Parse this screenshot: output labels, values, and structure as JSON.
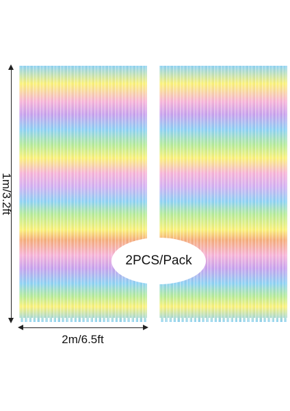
{
  "product": {
    "height_label": "1m/3.2ft",
    "width_label": "2m/6.5ft",
    "pack_label": "2PCS/Pack"
  },
  "curtain_colors": [
    "#8fd3f4",
    "#fbf27a",
    "#f7b4d9",
    "#c9a3ee",
    "#b8ec9a",
    "#f6ae7c"
  ]
}
